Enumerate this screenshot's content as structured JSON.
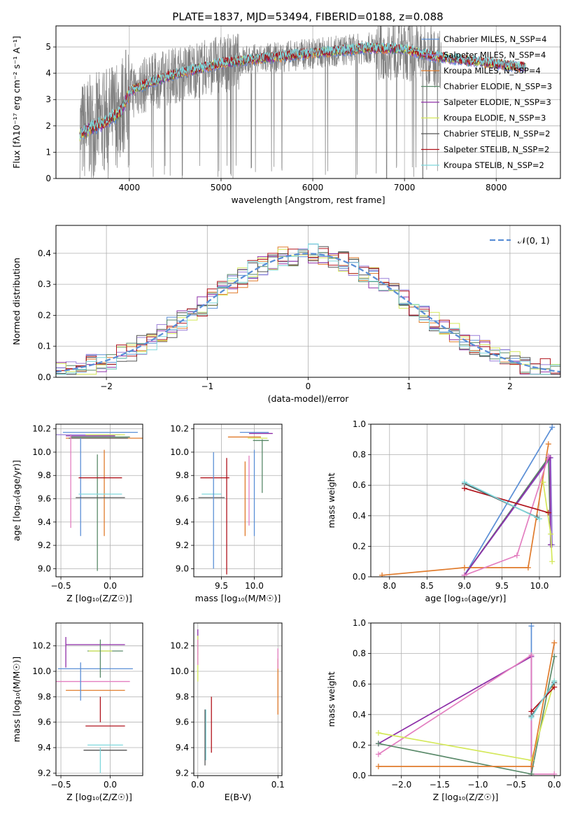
{
  "figure_title": "PLATE=1837, MJD=53494, FIBERID=0188, z=0.088",
  "chart_data": [
    {
      "id": "spectrum",
      "type": "line",
      "title": "PLATE=1837, MJD=53494, FIBERID=0188, z=0.088",
      "xlabel": "wavelength [Angstrom, rest frame]",
      "ylabel": "Flux [fλ10⁻¹⁷ erg cm⁻² s⁻¹ A⁻¹]",
      "xlim": [
        3200,
        8700
      ],
      "ylim": [
        0,
        5.8
      ],
      "xticks": [
        4000,
        5000,
        6000,
        7000,
        8000
      ],
      "yticks": [
        0,
        1,
        2,
        3,
        4,
        5
      ],
      "legend_position": "top-right",
      "data_range": [
        3460,
        8320
      ],
      "continuum_x": [
        3460,
        3560,
        3700,
        3900,
        4000,
        4200,
        4500,
        4800,
        5000,
        5300,
        5600,
        6000,
        6300,
        6600,
        7000,
        7300,
        7600,
        8000,
        8320
      ],
      "continuum_y": [
        1.75,
        1.95,
        2.15,
        2.6,
        3.3,
        3.6,
        3.95,
        4.2,
        4.35,
        4.5,
        4.6,
        4.75,
        4.85,
        4.95,
        4.9,
        4.65,
        4.5,
        4.35,
        4.2
      ],
      "series": [
        {
          "name": "Chabrier MILES, N_SSP=4",
          "color": "#5b8fd6"
        },
        {
          "name": "Salpeter MILES, N_SSP=4",
          "color": "#9a7fd8"
        },
        {
          "name": "Kroupa MILES, N_SSP=4",
          "color": "#e07b2c"
        },
        {
          "name": "Chabrier ELODIE, N_SSP=3",
          "color": "#5a8a6a"
        },
        {
          "name": "Salpeter ELODIE, N_SSP=3",
          "color": "#8e2fa8"
        },
        {
          "name": "Kroupa ELODIE, N_SSP=3",
          "color": "#d4e85a"
        },
        {
          "name": "Chabrier STELIB, N_SSP=2",
          "color": "#555555"
        },
        {
          "name": "Salpeter STELIB, N_SSP=2",
          "color": "#b0121b"
        },
        {
          "name": "Kroupa STELIB, N_SSP=2",
          "color": "#7ed7dc"
        }
      ],
      "data_color": "#808080"
    },
    {
      "id": "residuals",
      "type": "line",
      "xlabel": "(data-model)/error",
      "ylabel": "Normed distribution",
      "xlim": [
        -2.5,
        2.5
      ],
      "ylim": [
        0,
        0.49
      ],
      "xticks": [
        -2,
        -1,
        0,
        1,
        2
      ],
      "yticks": [
        0.0,
        0.1,
        0.2,
        0.3,
        0.4
      ],
      "legend": "𝒩(0, 1)",
      "legend_position": "top-right",
      "gaussian": {
        "mean": 0,
        "sigma": 1,
        "color": "#5b8fd6"
      },
      "series_colors": [
        "#5b8fd6",
        "#9a7fd8",
        "#e07b2c",
        "#5a8a6a",
        "#8e2fa8",
        "#d4e85a",
        "#555555",
        "#b0121b",
        "#7ed7dc"
      ]
    },
    {
      "id": "age_vs_Z",
      "type": "scatter",
      "xlabel": "Z [log₁₀(Z/Z☉)]",
      "ylabel": "age  [log₁₀(age/yr)]",
      "xlim": [
        -0.55,
        0.33
      ],
      "ylim": [
        8.93,
        10.24
      ],
      "xticks": [
        -0.5,
        0.0
      ],
      "yticks": [
        9.0,
        9.2,
        9.4,
        9.6,
        9.8,
        10.0,
        10.2
      ],
      "points": [
        {
          "x": -0.1,
          "y": 10.17,
          "xerr": 0.38,
          "yerr": 0,
          "color": "#5b8fd6"
        },
        {
          "x": -0.25,
          "y": 10.15,
          "xerr": 0.35,
          "yerr": 0,
          "color": "#9a7fd8"
        },
        {
          "x": -0.05,
          "y": 10.12,
          "xerr": 0.4,
          "yerr": 0,
          "color": "#e07b2c"
        },
        {
          "x": -0.1,
          "y": 10.13,
          "xerr": 0.3,
          "yerr": 0,
          "color": "#5a8a6a"
        },
        {
          "x": -0.2,
          "y": 10.14,
          "xerr": 0.25,
          "yerr": 0,
          "color": "#8e2fa8"
        },
        {
          "x": -0.05,
          "y": 10.15,
          "xerr": 0.2,
          "yerr": 0,
          "color": "#d4e85a"
        },
        {
          "x": -0.12,
          "y": 10.12,
          "xerr": 0.3,
          "yerr": 0,
          "color": "#555555"
        },
        {
          "x": -0.4,
          "y": 9.75,
          "xerr": 0,
          "yerr": 0.4,
          "color": "#e37fc0"
        },
        {
          "x": -0.3,
          "y": 9.7,
          "xerr": 0,
          "yerr": 0.42,
          "color": "#5b8fd6"
        },
        {
          "x": -0.06,
          "y": 9.65,
          "xerr": 0,
          "yerr": 0.37,
          "color": "#e07b2c"
        },
        {
          "x": -0.13,
          "y": 9.48,
          "xerr": 0,
          "yerr": 0.5,
          "color": "#5a8a6a"
        },
        {
          "x": -0.1,
          "y": 9.78,
          "xerr": 0.22,
          "yerr": 0,
          "color": "#b0121b"
        },
        {
          "x": -0.1,
          "y": 9.61,
          "xerr": 0.25,
          "yerr": 0,
          "color": "#555555"
        },
        {
          "x": -0.1,
          "y": 9.64,
          "xerr": 0.22,
          "yerr": 0,
          "color": "#7ed7dc"
        }
      ]
    },
    {
      "id": "age_vs_mass",
      "type": "scatter",
      "xlabel": "mass [log₁₀(M/M☉)]",
      "ylabel": "",
      "xlim": [
        9.08,
        10.42
      ],
      "ylim": [
        8.93,
        10.24
      ],
      "xticks": [
        9.5,
        10.0
      ],
      "yticks": [
        9.0,
        9.2,
        9.4,
        9.6,
        9.8,
        10.0,
        10.2
      ],
      "points": [
        {
          "x": 10.0,
          "y": 10.17,
          "xerr": 0.22,
          "yerr": 0,
          "color": "#5b8fd6"
        },
        {
          "x": 10.1,
          "y": 10.16,
          "xerr": 0.18,
          "yerr": 0,
          "color": "#8e2fa8"
        },
        {
          "x": 9.85,
          "y": 10.13,
          "xerr": 0.25,
          "yerr": 0,
          "color": "#e07b2c"
        },
        {
          "x": 10.05,
          "y": 10.12,
          "xerr": 0.15,
          "yerr": 0,
          "color": "#d4e85a"
        },
        {
          "x": 10.1,
          "y": 10.1,
          "xerr": 0.12,
          "yerr": 0,
          "color": "#5a8a6a"
        },
        {
          "x": 9.4,
          "y": 9.78,
          "xerr": 0.22,
          "yerr": 0,
          "color": "#b0121b"
        },
        {
          "x": 9.35,
          "y": 9.61,
          "xerr": 0.2,
          "yerr": 0,
          "color": "#555555"
        },
        {
          "x": 9.35,
          "y": 9.64,
          "xerr": 0.15,
          "yerr": 0,
          "color": "#7ed7dc"
        },
        {
          "x": 9.38,
          "y": 9.5,
          "xerr": 0,
          "yerr": 0.5,
          "color": "#5b8fd6"
        },
        {
          "x": 9.58,
          "y": 9.45,
          "xerr": 0,
          "yerr": 0.5,
          "color": "#b0121b"
        },
        {
          "x": 9.92,
          "y": 9.67,
          "xerr": 0,
          "yerr": 0.3,
          "color": "#e37fc0"
        },
        {
          "x": 9.86,
          "y": 9.6,
          "xerr": 0,
          "yerr": 0.32,
          "color": "#e07b2c"
        },
        {
          "x": 10.0,
          "y": 9.65,
          "xerr": 0,
          "yerr": 0.37,
          "color": "#5b8fd6"
        },
        {
          "x": 10.12,
          "y": 9.88,
          "xerr": 0,
          "yerr": 0.23,
          "color": "#5a8a6a"
        }
      ]
    },
    {
      "id": "massweight_vs_age",
      "type": "line",
      "xlabel": "age  [log₁₀(age/yr)]",
      "ylabel": "mass weight",
      "xlim": [
        7.75,
        10.28
      ],
      "ylim": [
        0,
        1.0
      ],
      "xticks": [
        8.0,
        8.5,
        9.0,
        9.5,
        10.0
      ],
      "yticks": [
        0.0,
        0.2,
        0.4,
        0.6,
        0.8,
        1.0
      ],
      "series": [
        {
          "color": "#5b8fd6",
          "x": [
            9.0,
            10.17
          ],
          "y": [
            0.01,
            0.98
          ]
        },
        {
          "color": "#9a7fd8",
          "x": [
            9.0,
            10.15,
            10.17
          ],
          "y": [
            0.01,
            0.78,
            0.21
          ]
        },
        {
          "color": "#e07b2c",
          "x": [
            7.9,
            9.0,
            9.85,
            10.12
          ],
          "y": [
            0.01,
            0.06,
            0.06,
            0.87
          ]
        },
        {
          "color": "#5a8a6a",
          "x": [
            9.0,
            10.12,
            10.15
          ],
          "y": [
            0.01,
            0.78,
            0.21
          ]
        },
        {
          "color": "#8e2fa8",
          "x": [
            9.0,
            10.14,
            10.15
          ],
          "y": [
            0.01,
            0.78,
            0.21
          ]
        },
        {
          "color": "#d4e85a",
          "x": [
            10.05,
            10.15,
            10.17
          ],
          "y": [
            0.62,
            0.28,
            0.1
          ]
        },
        {
          "color": "#e37fc0",
          "x": [
            9.0,
            9.7,
            10.12
          ],
          "y": [
            0.01,
            0.14,
            0.79
          ]
        },
        {
          "color": "#b0121b",
          "x": [
            9.0,
            10.12
          ],
          "y": [
            0.58,
            0.42
          ]
        },
        {
          "color": "#555555",
          "x": [
            9.0,
            9.97
          ],
          "y": [
            0.61,
            0.39
          ]
        },
        {
          "color": "#7ed7dc",
          "x": [
            9.0,
            10.0
          ],
          "y": [
            0.62,
            0.38
          ]
        }
      ]
    },
    {
      "id": "mass_vs_Z",
      "type": "scatter",
      "xlabel": "Z [log₁₀(Z/Z☉)]",
      "ylabel": "mass [log₁₀(M/M☉)]",
      "xlim": [
        -0.55,
        0.33
      ],
      "ylim": [
        9.18,
        10.38
      ],
      "xticks": [
        -0.5,
        0.0
      ],
      "yticks": [
        9.2,
        9.4,
        9.6,
        9.8,
        10.0,
        10.2
      ],
      "points": [
        {
          "x": -0.15,
          "y": 10.21,
          "xerr": 0.3,
          "yerr": 0,
          "color": "#8e2fa8"
        },
        {
          "x": -0.05,
          "y": 10.16,
          "xerr": 0.18,
          "yerr": 0,
          "color": "#5a8a6a"
        },
        {
          "x": -0.1,
          "y": 10.16,
          "xerr": 0.12,
          "yerr": 0,
          "color": "#d4e85a"
        },
        {
          "x": -0.15,
          "y": 10.02,
          "xerr": 0.38,
          "yerr": 0,
          "color": "#5b8fd6"
        },
        {
          "x": -0.2,
          "y": 9.92,
          "xerr": 0.4,
          "yerr": 0,
          "color": "#e37fc0"
        },
        {
          "x": -0.15,
          "y": 9.85,
          "xerr": 0.3,
          "yerr": 0,
          "color": "#e07b2c"
        },
        {
          "x": -0.05,
          "y": 9.57,
          "xerr": 0.2,
          "yerr": 0,
          "color": "#b0121b"
        },
        {
          "x": -0.05,
          "y": 9.42,
          "xerr": 0.18,
          "yerr": 0,
          "color": "#7ed7dc"
        },
        {
          "x": -0.05,
          "y": 9.38,
          "xerr": 0.22,
          "yerr": 0,
          "color": "#555555"
        },
        {
          "x": -0.45,
          "y": 10.15,
          "xerr": 0,
          "yerr": 0.12,
          "color": "#8e2fa8"
        },
        {
          "x": -0.3,
          "y": 9.92,
          "xerr": 0,
          "yerr": 0.15,
          "color": "#5b8fd6"
        },
        {
          "x": -0.1,
          "y": 9.7,
          "xerr": 0,
          "yerr": 0.1,
          "color": "#b0121b"
        },
        {
          "x": -0.1,
          "y": 9.3,
          "xerr": 0,
          "yerr": 0.1,
          "color": "#7ed7dc"
        },
        {
          "x": -0.1,
          "y": 10.1,
          "xerr": 0,
          "yerr": 0.15,
          "color": "#5a8a6a"
        }
      ]
    },
    {
      "id": "mass_vs_ebv",
      "type": "scatter",
      "xlabel": "E(B-V)",
      "ylabel": "",
      "xlim": [
        -0.005,
        0.105
      ],
      "ylim": [
        9.18,
        10.38
      ],
      "xticks": [
        0.0,
        0.1
      ],
      "yticks": [
        9.2,
        9.4,
        9.6,
        9.8,
        10.0,
        10.2
      ],
      "points": [
        {
          "x": 0.0,
          "y": 10.23,
          "xerr": 0,
          "yerr": 0.1,
          "color": "#8e2fa8"
        },
        {
          "x": 0.0,
          "y": 10.1,
          "xerr": 0,
          "yerr": 0.18,
          "color": "#d4e85a"
        },
        {
          "x": 0.0,
          "y": 10.15,
          "xerr": 0,
          "yerr": 0.1,
          "color": "#e37fc0"
        },
        {
          "x": 0.01,
          "y": 9.5,
          "xerr": 0,
          "yerr": 0.2,
          "color": "#7ed7dc"
        },
        {
          "x": 0.009,
          "y": 9.48,
          "xerr": 0,
          "yerr": 0.22,
          "color": "#555555"
        },
        {
          "x": 0.017,
          "y": 9.58,
          "xerr": 0,
          "yerr": 0.22,
          "color": "#b0121b"
        },
        {
          "x": 0.1,
          "y": 9.88,
          "xerr": 0,
          "yerr": 0.22,
          "color": "#e07b2c"
        },
        {
          "x": 0.1,
          "y": 10.1,
          "xerr": 0,
          "yerr": 0.08,
          "color": "#e37fc0"
        }
      ]
    },
    {
      "id": "massweight_vs_Z",
      "type": "line",
      "xlabel": "Z [log₁₀(Z/Z☉)]",
      "ylabel": "mass weight",
      "xlim": [
        -2.4,
        0.08
      ],
      "ylim": [
        0,
        1.0
      ],
      "xticks": [
        -2.0,
        -1.5,
        -1.0,
        -0.5,
        0.0
      ],
      "yticks": [
        0.0,
        0.2,
        0.4,
        0.6,
        0.8,
        1.0
      ],
      "series": [
        {
          "color": "#5b8fd6",
          "x": [
            -0.3,
            -0.3
          ],
          "y": [
            0.01,
            0.98
          ]
        },
        {
          "color": "#8e2fa8",
          "x": [
            -2.3,
            -0.3,
            -0.3
          ],
          "y": [
            0.21,
            0.78,
            0.01
          ]
        },
        {
          "color": "#e37fc0",
          "x": [
            -2.3,
            -0.3,
            -0.3,
            0.0
          ],
          "y": [
            0.14,
            0.79,
            0.01,
            0.01
          ]
        },
        {
          "color": "#5a8a6a",
          "x": [
            -2.3,
            -0.3,
            0.0
          ],
          "y": [
            0.21,
            0.01,
            0.78
          ]
        },
        {
          "color": "#d4e85a",
          "x": [
            -2.3,
            -0.3,
            0.0
          ],
          "y": [
            0.28,
            0.1,
            0.62
          ]
        },
        {
          "color": "#e07b2c",
          "x": [
            -2.3,
            -0.3,
            0.0
          ],
          "y": [
            0.06,
            0.06,
            0.87
          ]
        },
        {
          "color": "#b0121b",
          "x": [
            -0.3,
            0.0
          ],
          "y": [
            0.42,
            0.58
          ]
        },
        {
          "color": "#555555",
          "x": [
            -0.3,
            0.0
          ],
          "y": [
            0.39,
            0.61
          ]
        },
        {
          "color": "#7ed7dc",
          "x": [
            -0.3,
            0.0
          ],
          "y": [
            0.38,
            0.62
          ]
        }
      ]
    }
  ]
}
